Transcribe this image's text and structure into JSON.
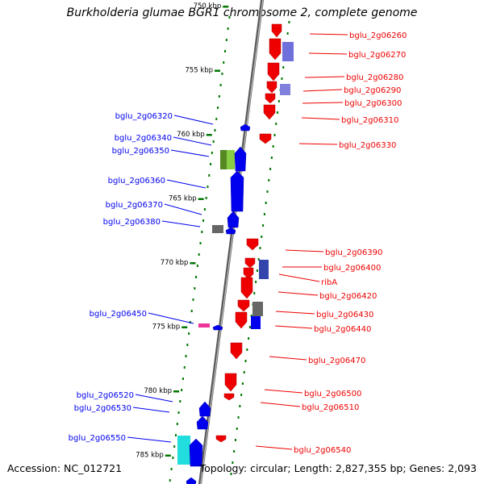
{
  "title": "Burkholderia glumae BGR1 chromosome 2, complete genome",
  "footer": {
    "accession": "Accession: NC_012721",
    "topology": "Topology: circular; Length: 2,827,355 bp; Genes: 2,093"
  },
  "colors": {
    "forward": "#0000ee",
    "reverse": "#ee0000",
    "tick": "#007700",
    "axis": "#888888"
  },
  "ticks": [
    {
      "label": "750 kbp",
      "kbp": 750
    },
    {
      "label": "755 kbp",
      "kbp": 755
    },
    {
      "label": "760 kbp",
      "kbp": 760
    },
    {
      "label": "765 kbp",
      "kbp": 765
    },
    {
      "label": "770 kbp",
      "kbp": 770
    },
    {
      "label": "775 kbp",
      "kbp": 775
    },
    {
      "label": "780 kbp",
      "kbp": 780
    },
    {
      "label": "785 kbp",
      "kbp": 785
    }
  ],
  "forward_genes": [
    {
      "name": "bglu_2g06320"
    },
    {
      "name": "bglu_2g06340"
    },
    {
      "name": "bglu_2g06350"
    },
    {
      "name": "bglu_2g06360"
    },
    {
      "name": "bglu_2g06370"
    },
    {
      "name": "bglu_2g06380"
    },
    {
      "name": "bglu_2g06450"
    },
    {
      "name": "bglu_2g06520"
    },
    {
      "name": "bglu_2g06530"
    },
    {
      "name": "bglu_2g06550"
    }
  ],
  "reverse_genes": [
    {
      "name": "bglu_2g06260"
    },
    {
      "name": "bglu_2g06270"
    },
    {
      "name": "bglu_2g06280"
    },
    {
      "name": "bglu_2g06290"
    },
    {
      "name": "bglu_2g06300"
    },
    {
      "name": "bglu_2g06310"
    },
    {
      "name": "bglu_2g06330"
    },
    {
      "name": "bglu_2g06390"
    },
    {
      "name": "bglu_2g06400"
    },
    {
      "name": "ribA"
    },
    {
      "name": "bglu_2g06420"
    },
    {
      "name": "bglu_2g06430"
    },
    {
      "name": "bglu_2g06440"
    },
    {
      "name": "bglu_2g06470"
    },
    {
      "name": "bglu_2g06500"
    },
    {
      "name": "bglu_2g06510"
    },
    {
      "name": "bglu_2g06540"
    }
  ]
}
